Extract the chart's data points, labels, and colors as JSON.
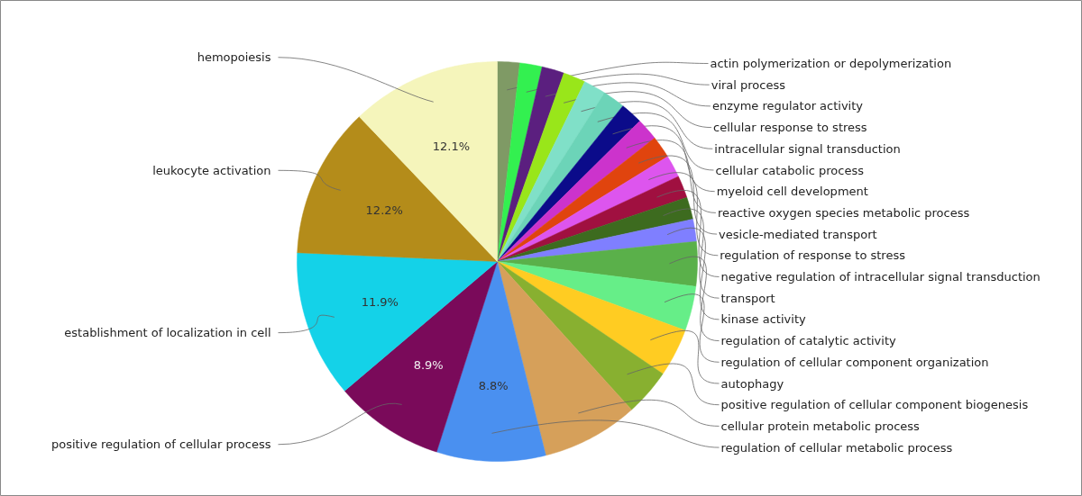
{
  "chart_data": {
    "type": "pie",
    "categories": [
      "actin polymerization or depolymerization",
      "viral process",
      "enzyme regulator activity",
      "cellular response to stress",
      "intracellular signal transduction",
      "cellular catabolic process",
      "myeloid cell development",
      "reactive oxygen species metabolic process",
      "vesicle-mediated transport",
      "regulation of response to stress",
      "negative regulation of intracellular signal transduction",
      "transport",
      "kinase activity",
      "regulation of catalytic activity",
      "regulation of cellular component organization",
      "autophagy",
      "positive regulation of cellular component biogenesis",
      "cellular protein metabolic process",
      "regulation of cellular metabolic process",
      "positive regulation of cellular process",
      "establishment of localization in cell",
      "leukocyte activation",
      "hemopoiesis"
    ],
    "values": [
      1.8,
      1.8,
      1.8,
      1.8,
      1.8,
      1.8,
      1.8,
      1.8,
      1.8,
      1.8,
      1.8,
      1.8,
      1.8,
      3.6,
      3.6,
      3.9,
      3.8,
      7.8,
      8.8,
      8.9,
      11.9,
      12.2,
      12.1
    ],
    "colors": [
      "#7f9a65",
      "#33f050",
      "#5b1f7f",
      "#99e61a",
      "#80e0c8",
      "#6cd4b8",
      "#0b0b8a",
      "#cc33cc",
      "#e0440e",
      "#dd55ee",
      "#a01040",
      "#3d6b1f",
      "#7f7fff",
      "#5ab04a",
      "#66ee88",
      "#ffcc22",
      "#88b030",
      "#d6a05a",
      "#4a90f0",
      "#7a0a5a",
      "#14d2e8",
      "#b48c1a",
      "#f5f5bb"
    ],
    "value_labels": [
      null,
      null,
      null,
      null,
      null,
      null,
      null,
      null,
      null,
      null,
      null,
      null,
      null,
      null,
      null,
      null,
      null,
      null,
      "8.8%",
      "8.9%",
      "11.9%",
      "12.2%",
      "12.1%"
    ]
  }
}
